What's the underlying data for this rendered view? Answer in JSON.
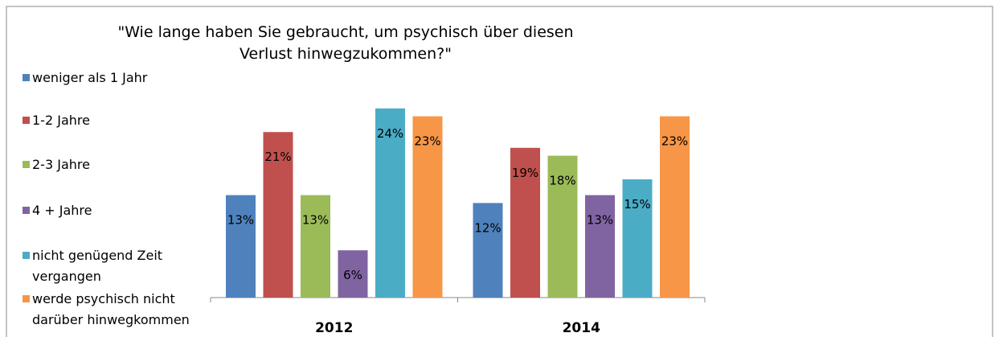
{
  "chart_data": {
    "type": "bar",
    "title": [
      "\"Wie lange haben Sie gebraucht, um psychisch über diesen",
      "Verlust hinwegzukommen?\""
    ],
    "categories": [
      "2012",
      "2014"
    ],
    "ylim": [
      0,
      25
    ],
    "legend": "left",
    "series": [
      {
        "name": "weniger als 1 Jahr",
        "color": "#4f81bd",
        "values": [
          13,
          12
        ],
        "value_labels": [
          "13%",
          "12%"
        ]
      },
      {
        "name": "1-2 Jahre",
        "color": "#c0504d",
        "values": [
          21,
          19
        ],
        "value_labels": [
          "21%",
          "19%"
        ]
      },
      {
        "name": "2-3 Jahre",
        "color": "#9bbb59",
        "values": [
          13,
          18
        ],
        "value_labels": [
          "13%",
          "18%"
        ]
      },
      {
        "name": "4 + Jahre",
        "color": "#8064a2",
        "values": [
          6,
          13
        ],
        "value_labels": [
          "6%",
          "13%"
        ]
      },
      {
        "name": "nicht genügend Zeit vergangen",
        "color": "#4bacc6",
        "values": [
          24,
          15
        ],
        "value_labels": [
          "24%",
          "15%"
        ]
      },
      {
        "name": "werde psychisch nicht darüber hinwegkommen",
        "color": "#f79646",
        "values": [
          23,
          23
        ],
        "value_labels": [
          "23%",
          "23%"
        ]
      }
    ]
  }
}
